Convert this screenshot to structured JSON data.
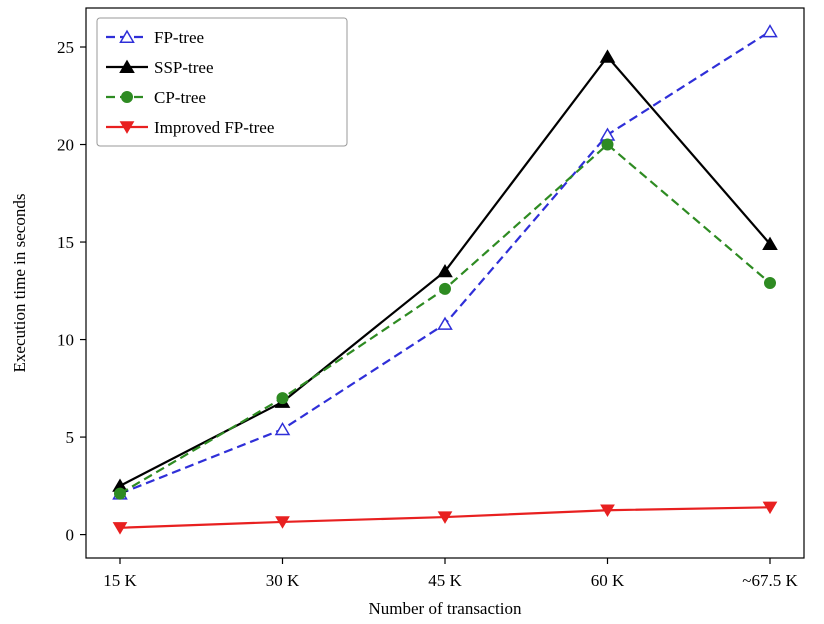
{
  "chart_data": {
    "type": "line",
    "categories": [
      "15 K",
      "30 K",
      "45 K",
      "60 K",
      "~67.5 K"
    ],
    "xlabel": "Number of transaction",
    "ylabel": "Execution time in seconds",
    "ylim": [
      -1.2,
      27
    ],
    "yticks": [
      0,
      5,
      10,
      15,
      20,
      25
    ],
    "grid": false,
    "legend_position": "top-left",
    "series": [
      {
        "name": "FP-tree",
        "color": "#2f2fd8",
        "dash": "dashed",
        "marker": "triangle-up-open",
        "values": [
          2.1,
          5.4,
          10.8,
          20.5,
          25.8
        ]
      },
      {
        "name": "SSP-tree",
        "color": "#000000",
        "dash": "solid",
        "marker": "triangle-up-filled",
        "values": [
          2.5,
          6.8,
          13.5,
          24.5,
          14.9
        ]
      },
      {
        "name": "CP-tree",
        "color": "#2e8b22",
        "dash": "dashed",
        "marker": "circle-filled",
        "values": [
          2.1,
          7.0,
          12.6,
          20.0,
          12.9
        ]
      },
      {
        "name": "Improved FP-tree",
        "color": "#e82020",
        "dash": "solid",
        "marker": "triangle-down-filled",
        "values": [
          0.35,
          0.65,
          0.9,
          1.25,
          1.4
        ]
      }
    ]
  }
}
